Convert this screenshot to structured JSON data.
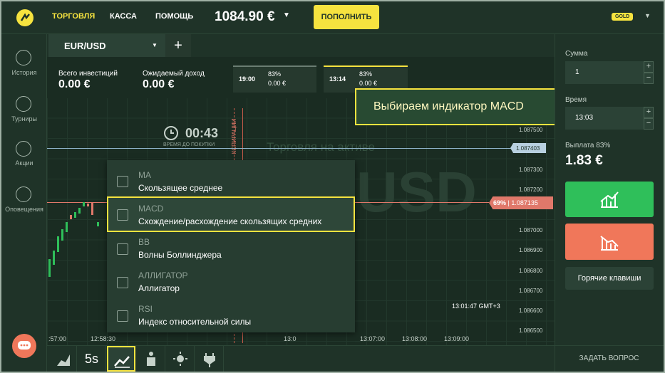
{
  "header": {
    "nav": [
      "ТОРГОВЛЯ",
      "КАССА",
      "ПОМОЩЬ"
    ],
    "balance": "1084.90 €",
    "deposit_button": "ПОПОЛНИТЬ",
    "status_badge": "GOLD"
  },
  "sidebar": {
    "items": [
      "История",
      "Турниры",
      "Акции",
      "Оповещения"
    ]
  },
  "tabs": {
    "active": "EUR/USD",
    "add": "+"
  },
  "stats": [
    {
      "label": "Всего инвестиций",
      "value": "0.00 €"
    },
    {
      "label": "Ожидаемый доход",
      "value": "0.00 €"
    }
  ],
  "deals": [
    {
      "time": "19:00",
      "percent": "83%",
      "amount": "0.00 €"
    },
    {
      "time": "13:14",
      "percent": "83%",
      "amount": "0.00 €"
    }
  ],
  "callout": "Выбираем индикатор MACD",
  "timer": {
    "value": "00:43",
    "label": "ВРЕМЯ ДО ПОКУПКИ",
    "expiry": "КСПИРАЦИИ"
  },
  "watermark": {
    "subtitle": "Торговля на активе",
    "asset": "USD"
  },
  "price_axis": {
    "labels": [
      "1.087500",
      "1.087300",
      "1.087200",
      "1.087000",
      "1.086900",
      "1.086800",
      "1.086700",
      "1.086600",
      "1.086500"
    ],
    "current": "1.087403",
    "marker_percent": "69%",
    "marker_price": "1.087135"
  },
  "time_axis": {
    "labels": [
      ":57:00",
      "12:58:30",
      "13:0",
      "13:07:00",
      "13:08:00",
      "13:09:00"
    ],
    "server_time": "13:01:47 GMT+3"
  },
  "indicators": [
    {
      "code": "MA",
      "name": "Скользящее среднее"
    },
    {
      "code": "MACD",
      "name": "Схождение/расхождение скользящих средних"
    },
    {
      "code": "BB",
      "name": "Волны Боллинджера"
    },
    {
      "code": "АЛЛИГАТОР",
      "name": "Аллигатор"
    },
    {
      "code": "RSI",
      "name": "Индекс относительной силы"
    }
  ],
  "toolbar": {
    "interval": "5s"
  },
  "trade_panel": {
    "amount_label": "Сумма",
    "amount": "1",
    "time_label": "Время",
    "time": "13:03",
    "payout_label": "Выплата 83%",
    "payout": "1.83 €",
    "hotkeys": "Горячие клавиши",
    "ask_question": "ЗАДАТЬ ВОПРОС"
  }
}
